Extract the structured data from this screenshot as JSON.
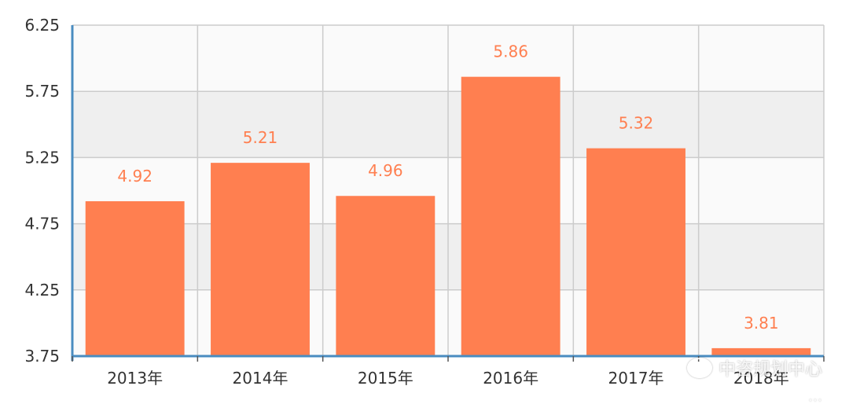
{
  "chart_data": {
    "type": "bar",
    "categories": [
      "2013年",
      "2014年",
      "2015年",
      "2016年",
      "2017年",
      "2018年"
    ],
    "values": [
      4.92,
      5.21,
      4.96,
      5.86,
      5.32,
      3.81
    ],
    "value_labels": [
      "4.92",
      "5.21",
      "4.96",
      "5.86",
      "5.32",
      "3.81"
    ],
    "title": "",
    "xlabel": "",
    "ylabel": "",
    "ylim": [
      3.75,
      6.25
    ],
    "yticks": [
      "3.75",
      "4.25",
      "4.75",
      "5.25",
      "5.75",
      "6.25"
    ],
    "grid": true,
    "legend": "none",
    "colors": {
      "bar": "#ff7f50",
      "label": "#ff7f50",
      "axis": "#4a8cc0",
      "grid": "#cccccc",
      "band_dark": "#efefef",
      "band_light": "#fafafa"
    }
  },
  "watermark": {
    "line1": "中咨规划中心",
    "line2": "…",
    "icon": "wechat-icon"
  }
}
